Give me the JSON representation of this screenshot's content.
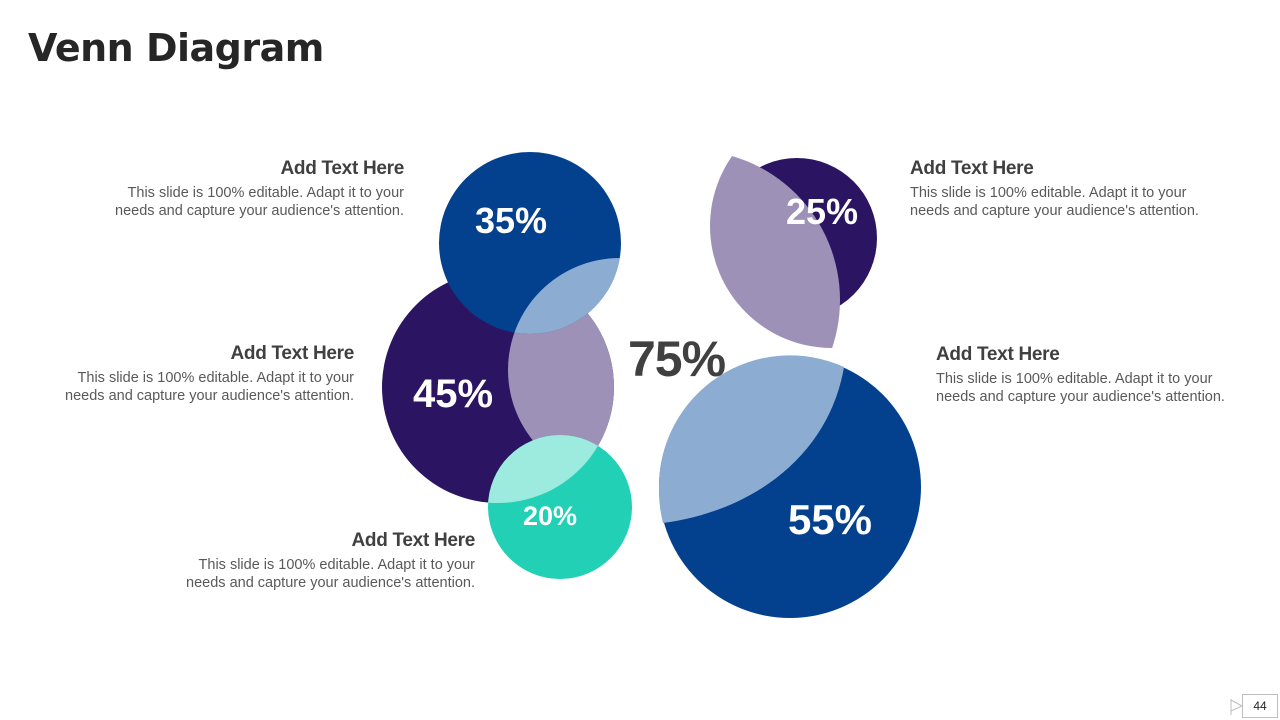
{
  "slide": {
    "title": "Venn Diagram",
    "center_label": "75%",
    "page_number": "44"
  },
  "circles": [
    {
      "id": "c35",
      "label": "35%",
      "value": 35,
      "color": "#03418F"
    },
    {
      "id": "c45",
      "label": "45%",
      "value": 45,
      "color": "#2B1562"
    },
    {
      "id": "c20",
      "label": "20%",
      "value": 20,
      "color": "#22D1B5"
    },
    {
      "id": "c25",
      "label": "25%",
      "value": 25,
      "color": "#2B1562"
    },
    {
      "id": "c55",
      "label": "55%",
      "value": 55,
      "color": "#03418F"
    }
  ],
  "overlap_colors": {
    "light_blue": "#8DACD2",
    "lavender": "#9E91B7",
    "mint": "#9DEADF"
  },
  "text_blocks": [
    {
      "heading": "Add Text Here",
      "text": "This slide is 100% editable.  Adapt it to your needs and capture your audience's attention."
    },
    {
      "heading": "Add Text Here",
      "text": "This slide is 100% editable.  Adapt it to your needs and capture your audience's attention."
    },
    {
      "heading": "Add Text Here",
      "text": "This slide is 100% editable.  Adapt it to your needs and capture your audience's attention."
    },
    {
      "heading": "Add Text Here",
      "text": "This slide is 100% editable.  Adapt it to your needs and capture your audience's attention."
    },
    {
      "heading": "Add Text Here",
      "text": "This slide is 100% editable.  Adapt it to your needs and capture your audience's attention."
    }
  ]
}
